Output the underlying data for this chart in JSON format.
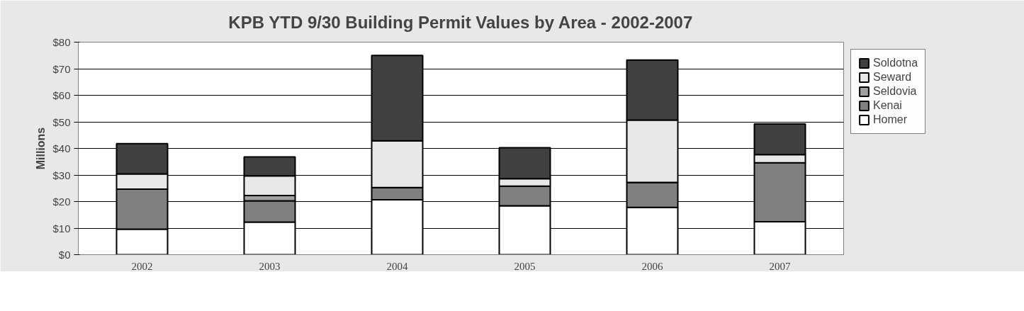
{
  "chart_data": {
    "type": "bar",
    "stacked": true,
    "title": "KPB YTD 9/30 Building Permit Values by Area - 2002-2007",
    "ylabel": "Millions",
    "categories": [
      "2002",
      "2003",
      "2004",
      "2005",
      "2006",
      "2007"
    ],
    "series": [
      {
        "name": "Homer",
        "color": "#ffffff",
        "values": [
          9.6,
          12.3,
          20.7,
          18.4,
          17.8,
          12.4
        ]
      },
      {
        "name": "Kenai",
        "color": "#808080",
        "values": [
          15.1,
          8.0,
          4.6,
          7.4,
          9.4,
          22.2
        ]
      },
      {
        "name": "Seldovia",
        "color": "#a0a0a0",
        "values": [
          0,
          2.0,
          0,
          0,
          0,
          0
        ]
      },
      {
        "name": "Seward",
        "color": "#e8e8e8",
        "values": [
          5.7,
          7.4,
          17.6,
          2.8,
          23.5,
          3.1
        ]
      },
      {
        "name": "Soldotna",
        "color": "#404040",
        "values": [
          11.4,
          7.1,
          32.1,
          11.7,
          22.6,
          11.5
        ]
      }
    ],
    "ylim": [
      0,
      80
    ],
    "yticks": [
      {
        "value": 0,
        "label": "$0"
      },
      {
        "value": 10,
        "label": "$10"
      },
      {
        "value": 20,
        "label": "$20"
      },
      {
        "value": 30,
        "label": "$30"
      },
      {
        "value": 40,
        "label": "$40"
      },
      {
        "value": 50,
        "label": "$50"
      },
      {
        "value": 60,
        "label": "$60"
      },
      {
        "value": 70,
        "label": "$70"
      },
      {
        "value": 80,
        "label": "$80"
      }
    ],
    "grid": "y",
    "legend": "right"
  }
}
